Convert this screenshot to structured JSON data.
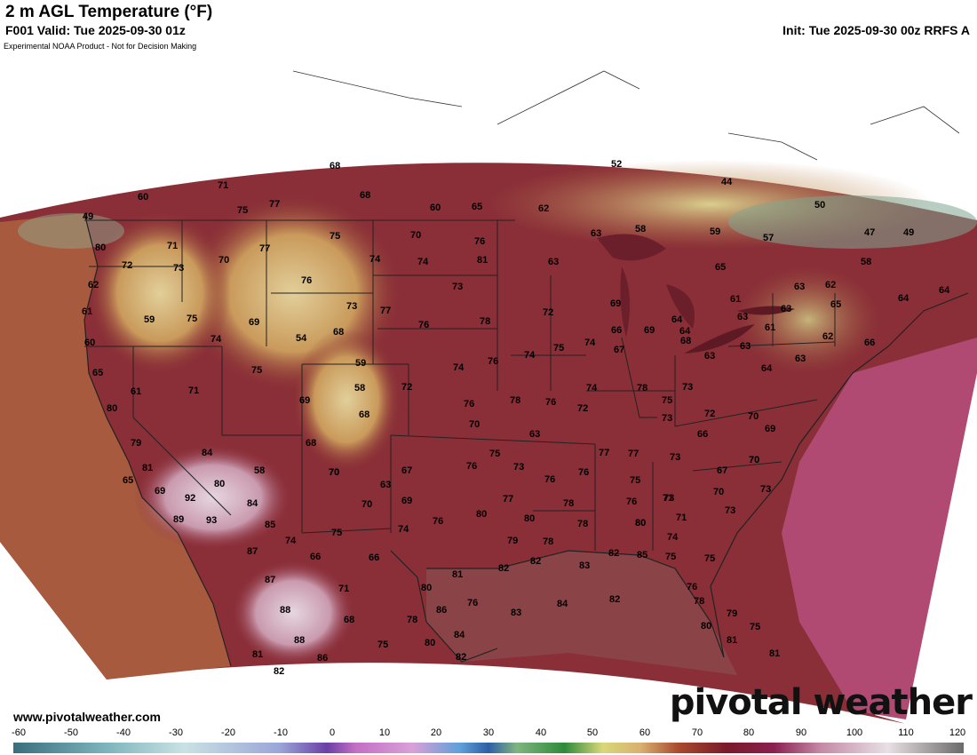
{
  "header": {
    "title": "2 m AGL Temperature (°F)",
    "valid": "F001 Valid: Tue 2025-09-30 01z",
    "init": "Init: Tue 2025-09-30 00z RRFS A",
    "disclaimer": "Experimental NOAA Product - Not for Decision Making"
  },
  "footer": {
    "website": "www.pivotalweather.com",
    "brand": "pivotal weather"
  },
  "map": {
    "temperature_labels": [
      "68",
      "52",
      "71",
      "60",
      "75",
      "77",
      "68",
      "60",
      "65",
      "62",
      "44",
      "50",
      "49",
      "49",
      "80",
      "71",
      "77",
      "75",
      "70",
      "76",
      "58",
      "59",
      "57",
      "47",
      "49",
      "72",
      "73",
      "70",
      "74",
      "74",
      "81",
      "73",
      "63",
      "63",
      "62",
      "65",
      "63",
      "62",
      "58",
      "64",
      "64",
      "62",
      "61",
      "59",
      "75",
      "69",
      "76",
      "73",
      "77",
      "76",
      "78",
      "72",
      "69",
      "66",
      "69",
      "64",
      "61",
      "61",
      "63",
      "65",
      "63",
      "62",
      "66",
      "60",
      "74",
      "54",
      "68",
      "75",
      "75",
      "59",
      "74",
      "76",
      "74",
      "75",
      "74",
      "67",
      "64",
      "63",
      "68",
      "63",
      "64",
      "63",
      "65",
      "61",
      "71",
      "69",
      "58",
      "72",
      "76",
      "78",
      "76",
      "72",
      "74",
      "68",
      "73",
      "72",
      "70",
      "63",
      "73",
      "75",
      "78",
      "80",
      "77",
      "73",
      "67",
      "70",
      "73",
      "79",
      "81",
      "84",
      "58",
      "68",
      "70",
      "67",
      "63",
      "75",
      "70",
      "76",
      "73",
      "76",
      "66",
      "70",
      "69",
      "65",
      "77",
      "75",
      "76",
      "71",
      "70",
      "70",
      "73",
      "80",
      "69",
      "92",
      "80",
      "84",
      "70",
      "69",
      "76",
      "80",
      "77",
      "80",
      "78",
      "78",
      "76",
      "80",
      "71",
      "73",
      "74",
      "89",
      "93",
      "85",
      "74",
      "75",
      "74",
      "79",
      "78",
      "82",
      "82",
      "83",
      "82",
      "85",
      "75",
      "75",
      "87",
      "66",
      "66",
      "81",
      "76",
      "87",
      "71",
      "80",
      "82",
      "83",
      "84",
      "78",
      "88",
      "68",
      "78",
      "86",
      "80",
      "75",
      "79",
      "88",
      "75",
      "80",
      "84",
      "76",
      "81",
      "86",
      "82",
      "81",
      "81",
      "82"
    ],
    "colors": {
      "cold": "#3f7b8a",
      "cool": "#d2b86e",
      "mild": "#a8523f",
      "warm": "#7a1a2a",
      "hot": "#9b2a55",
      "very_hot": "#d6c3cf",
      "ocean_pacific": "#a85a3e",
      "ocean_atlantic": "#b04a72",
      "gulf": "#8a4448"
    }
  },
  "colorbar": {
    "ticks": [
      "-60",
      "-50",
      "-40",
      "-30",
      "-20",
      "-10",
      "0",
      "10",
      "20",
      "30",
      "40",
      "50",
      "60",
      "70",
      "80",
      "90",
      "100",
      "110",
      "120"
    ]
  }
}
